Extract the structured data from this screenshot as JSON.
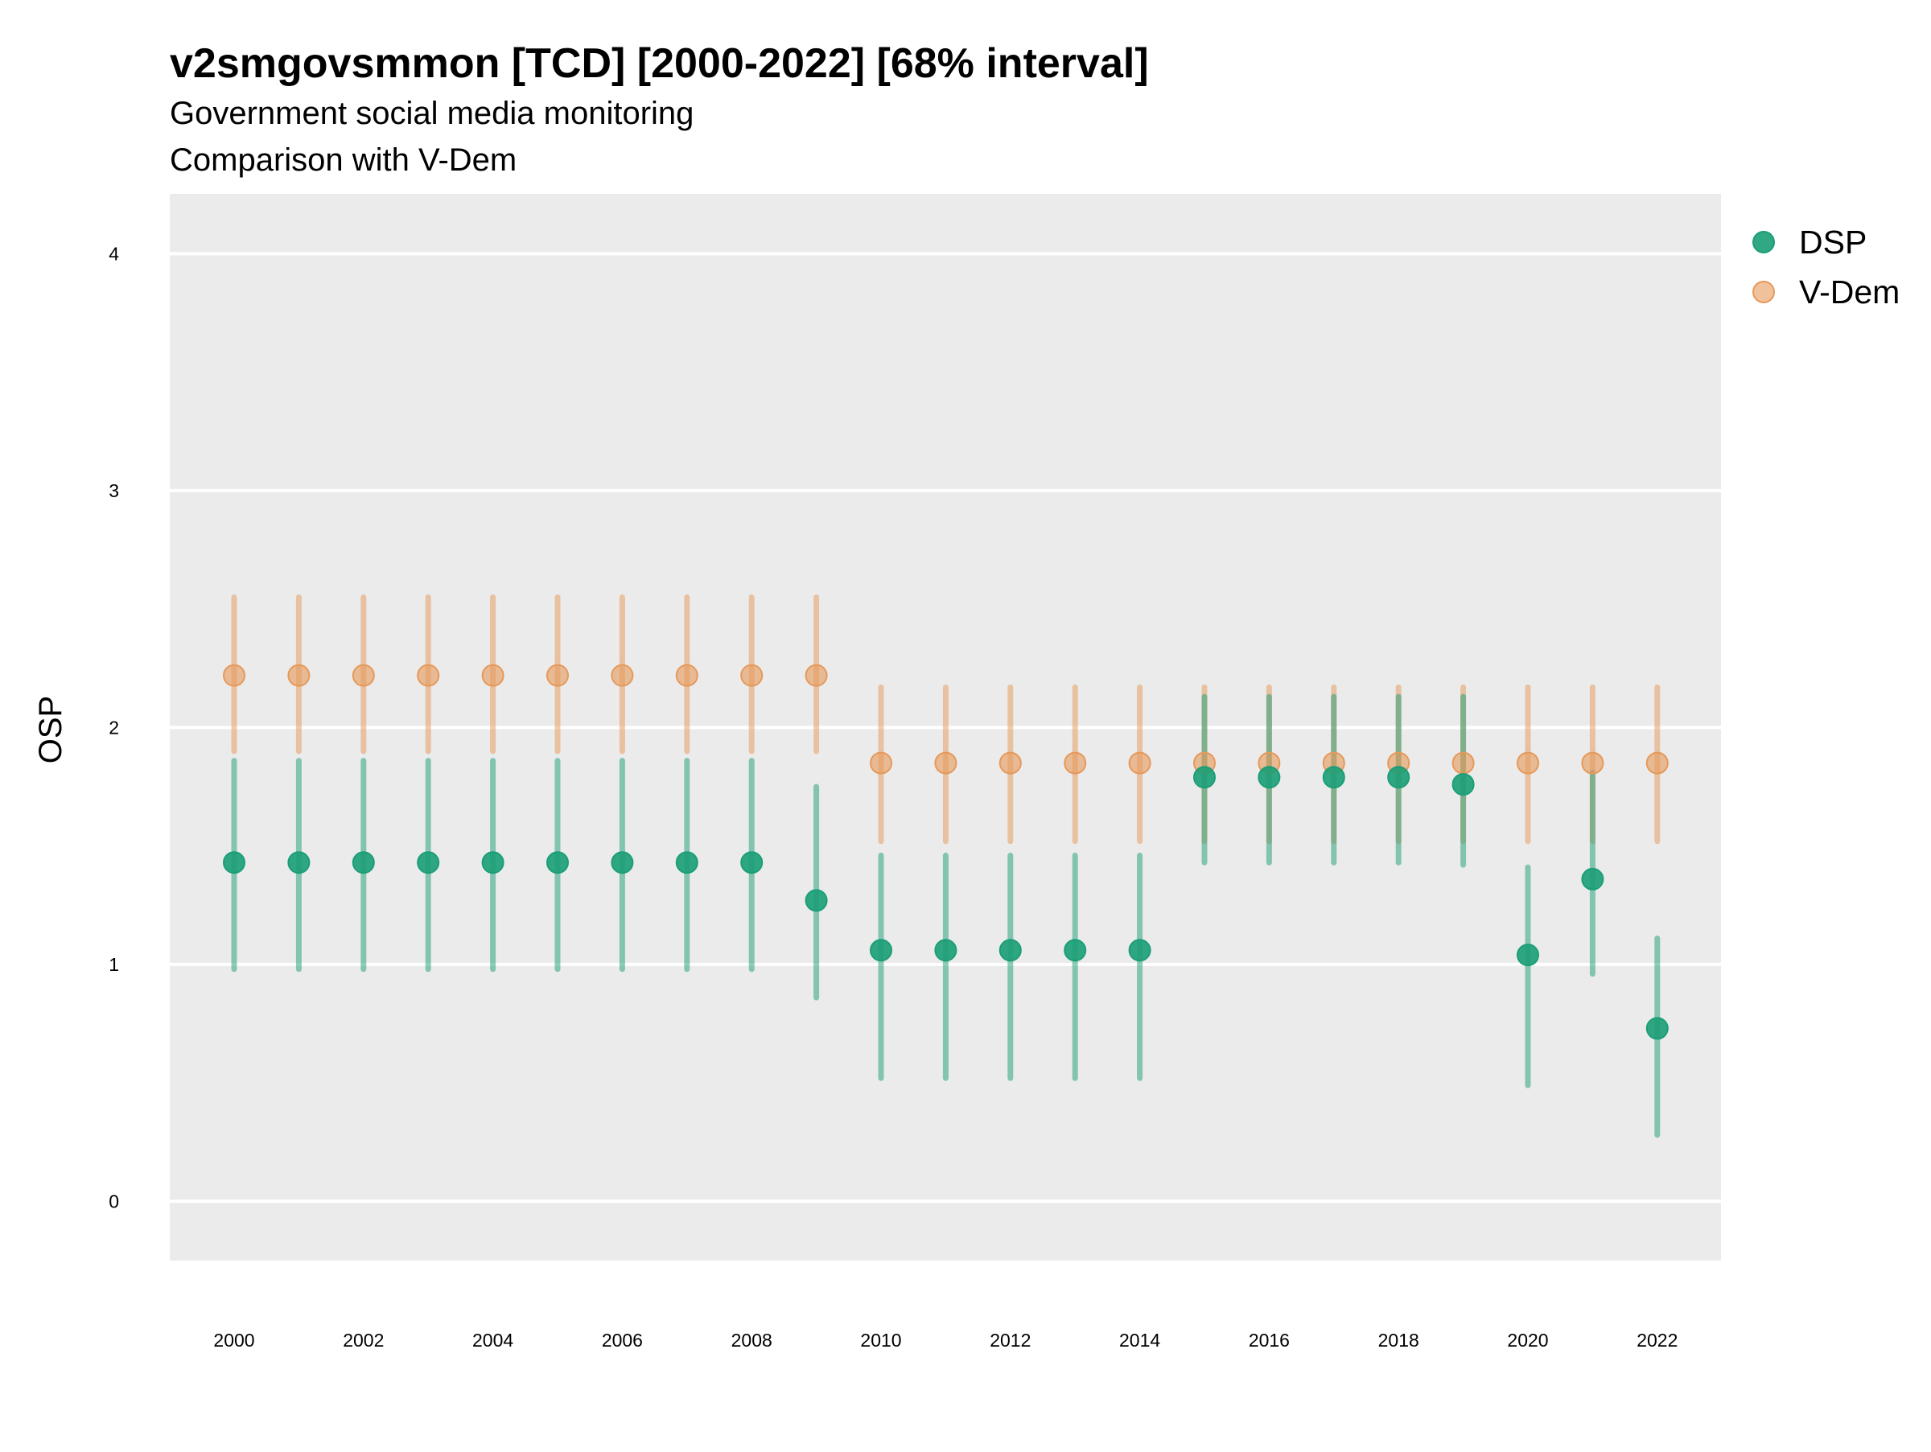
{
  "chart_data": {
    "type": "scatter",
    "title": "v2smgovsmmon [TCD] [2000-2022] [68% interval]",
    "subtitle": [
      "Government social media monitoring",
      "Comparison with V-Dem"
    ],
    "xlabel": "",
    "ylabel": "OSP",
    "ylim": [
      -0.25,
      4.25
    ],
    "xlim": [
      1999,
      2023
    ],
    "yticks": [
      "0",
      "1",
      "2",
      "3",
      "4"
    ],
    "xticks": [
      "2000",
      "2002",
      "2004",
      "2006",
      "2008",
      "2010",
      "2012",
      "2014",
      "2016",
      "2018",
      "2020",
      "2022"
    ],
    "grid": true,
    "legend_position": "right-top",
    "colors": {
      "DSP": "#1b9e77",
      "V-Dem": "#e6995a"
    },
    "series": [
      {
        "name": "DSP",
        "x": [
          2000,
          2001,
          2002,
          2003,
          2004,
          2005,
          2006,
          2007,
          2008,
          2009,
          2010,
          2011,
          2012,
          2013,
          2014,
          2015,
          2016,
          2017,
          2018,
          2019,
          2020,
          2021,
          2022
        ],
        "y": [
          1.43,
          1.43,
          1.43,
          1.43,
          1.43,
          1.43,
          1.43,
          1.43,
          1.43,
          1.27,
          1.06,
          1.06,
          1.06,
          1.06,
          1.06,
          1.79,
          1.79,
          1.79,
          1.79,
          1.76,
          1.04,
          1.36,
          0.73
        ],
        "lower": [
          0.98,
          0.98,
          0.98,
          0.98,
          0.98,
          0.98,
          0.98,
          0.98,
          0.98,
          0.86,
          0.52,
          0.52,
          0.52,
          0.52,
          0.52,
          1.43,
          1.43,
          1.43,
          1.43,
          1.42,
          0.49,
          0.96,
          0.28
        ],
        "upper": [
          1.86,
          1.86,
          1.86,
          1.86,
          1.86,
          1.86,
          1.86,
          1.86,
          1.86,
          1.75,
          1.46,
          1.46,
          1.46,
          1.46,
          1.46,
          2.13,
          2.13,
          2.13,
          2.13,
          2.13,
          1.41,
          1.81,
          1.11
        ]
      },
      {
        "name": "V-Dem",
        "x": [
          2000,
          2001,
          2002,
          2003,
          2004,
          2005,
          2006,
          2007,
          2008,
          2009,
          2010,
          2011,
          2012,
          2013,
          2014,
          2015,
          2016,
          2017,
          2018,
          2019,
          2020,
          2021,
          2022
        ],
        "y": [
          2.22,
          2.22,
          2.22,
          2.22,
          2.22,
          2.22,
          2.22,
          2.22,
          2.22,
          2.22,
          1.85,
          1.85,
          1.85,
          1.85,
          1.85,
          1.85,
          1.85,
          1.85,
          1.85,
          1.85,
          1.85,
          1.85,
          1.85
        ],
        "lower": [
          1.9,
          1.9,
          1.9,
          1.9,
          1.9,
          1.9,
          1.9,
          1.9,
          1.9,
          1.9,
          1.52,
          1.52,
          1.52,
          1.52,
          1.52,
          1.52,
          1.52,
          1.52,
          1.52,
          1.52,
          1.52,
          1.52,
          1.52
        ],
        "upper": [
          2.55,
          2.55,
          2.55,
          2.55,
          2.55,
          2.55,
          2.55,
          2.55,
          2.55,
          2.55,
          2.17,
          2.17,
          2.17,
          2.17,
          2.17,
          2.17,
          2.17,
          2.17,
          2.17,
          2.17,
          2.17,
          2.17,
          2.17
        ]
      }
    ]
  }
}
